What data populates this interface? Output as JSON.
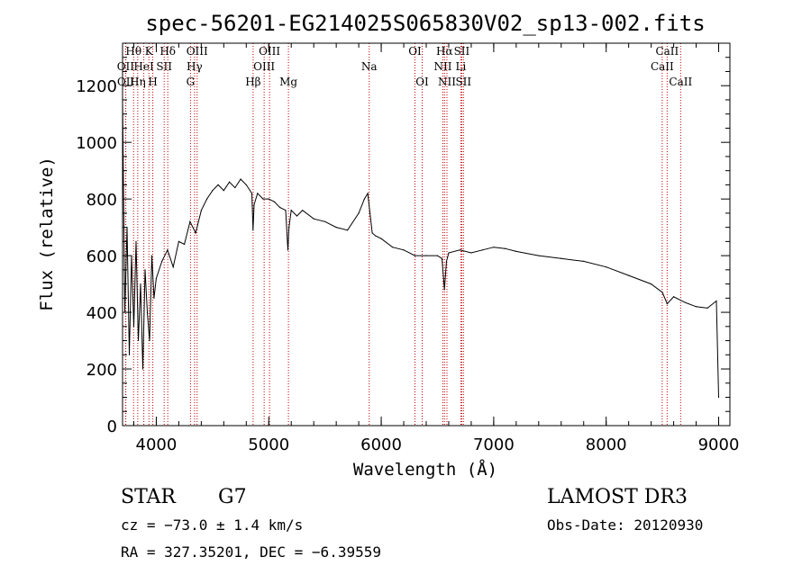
{
  "chart_data": {
    "type": "line",
    "title": "spec-56201-EG214025S065830V02_sp13-002.fits",
    "xlabel": "Wavelength (Å)",
    "ylabel": "Flux (relative)",
    "xlim": [
      3700,
      9100
    ],
    "ylim": [
      0,
      1350
    ],
    "x_ticks": [
      4000,
      5000,
      6000,
      7000,
      8000,
      9000
    ],
    "y_ticks": [
      0,
      200,
      400,
      600,
      800,
      1000,
      1200
    ],
    "series": [
      {
        "name": "spectrum",
        "x": [
          3700,
          3720,
          3740,
          3760,
          3780,
          3800,
          3820,
          3840,
          3860,
          3880,
          3900,
          3920,
          3940,
          3960,
          3980,
          4000,
          4050,
          4100,
          4150,
          4200,
          4250,
          4300,
          4350,
          4400,
          4450,
          4500,
          4550,
          4600,
          4650,
          4700,
          4750,
          4800,
          4850,
          4860,
          4870,
          4900,
          4950,
          5000,
          5050,
          5100,
          5150,
          5170,
          5180,
          5200,
          5250,
          5300,
          5400,
          5500,
          5600,
          5700,
          5800,
          5850,
          5880,
          5900,
          5920,
          5950,
          6000,
          6100,
          6200,
          6300,
          6400,
          6500,
          6540,
          6562,
          6580,
          6600,
          6700,
          6800,
          6900,
          7000,
          7100,
          7200,
          7400,
          7600,
          7800,
          8000,
          8200,
          8400,
          8500,
          8542,
          8600,
          8700,
          8800,
          8900,
          8980,
          9000
        ],
        "y": [
          1150,
          400,
          700,
          250,
          600,
          350,
          650,
          300,
          500,
          200,
          550,
          400,
          300,
          600,
          450,
          520,
          580,
          620,
          560,
          650,
          640,
          720,
          680,
          760,
          800,
          830,
          850,
          830,
          860,
          840,
          870,
          850,
          820,
          690,
          780,
          820,
          800,
          800,
          790,
          770,
          760,
          620,
          700,
          760,
          740,
          760,
          730,
          720,
          700,
          690,
          750,
          800,
          820,
          750,
          680,
          670,
          660,
          630,
          620,
          600,
          600,
          600,
          590,
          480,
          580,
          610,
          620,
          610,
          620,
          630,
          625,
          615,
          600,
          590,
          580,
          560,
          530,
          500,
          470,
          430,
          455,
          435,
          420,
          415,
          440,
          100
        ]
      }
    ],
    "spectral_lines": [
      {
        "label": "Hθ",
        "wavelength": 3798,
        "row": 1
      },
      {
        "label": "OII",
        "wavelength": 3727,
        "row": 2
      },
      {
        "label": "OII",
        "wavelength": 3729,
        "row": 3
      },
      {
        "label": "Hη",
        "wavelength": 3835,
        "row": 3
      },
      {
        "label": "K",
        "wavelength": 3934,
        "row": 1
      },
      {
        "label": "HeI",
        "wavelength": 3889,
        "row": 2
      },
      {
        "label": "H",
        "wavelength": 3969,
        "row": 3
      },
      {
        "label": "SII",
        "wavelength": 4070,
        "row": 2
      },
      {
        "label": "Hδ",
        "wavelength": 4102,
        "row": 1
      },
      {
        "label": "OIII",
        "wavelength": 4363,
        "row": 1
      },
      {
        "label": "Hγ",
        "wavelength": 4340,
        "row": 2
      },
      {
        "label": "G",
        "wavelength": 4304,
        "row": 3
      },
      {
        "label": "Hβ",
        "wavelength": 4861,
        "row": 3
      },
      {
        "label": "OIII",
        "wavelength": 5007,
        "row": 1
      },
      {
        "label": "OIII",
        "wavelength": 4959,
        "row": 2
      },
      {
        "label": "Mg",
        "wavelength": 5175,
        "row": 3
      },
      {
        "label": "Na",
        "wavelength": 5893,
        "row": 2
      },
      {
        "label": "OI",
        "wavelength": 6300,
        "row": 1
      },
      {
        "label": "OI",
        "wavelength": 6364,
        "row": 3
      },
      {
        "label": "Hα",
        "wavelength": 6563,
        "row": 1
      },
      {
        "label": "NII",
        "wavelength": 6548,
        "row": 2
      },
      {
        "label": "NII",
        "wavelength": 6584,
        "row": 3
      },
      {
        "label": "SII",
        "wavelength": 6716,
        "row": 1
      },
      {
        "label": "Li",
        "wavelength": 6708,
        "row": 2
      },
      {
        "label": "SII",
        "wavelength": 6731,
        "row": 3
      },
      {
        "label": "CaII",
        "wavelength": 8542,
        "row": 1
      },
      {
        "label": "CaII",
        "wavelength": 8498,
        "row": 2
      },
      {
        "label": "CaII",
        "wavelength": 8662,
        "row": 3
      }
    ]
  },
  "info": {
    "object_class": "STAR",
    "subclass": "G7",
    "survey": "LAMOST DR3",
    "redshift_text": "cz = −73.0 ± 1.4 km/s",
    "obs_date_text": "Obs-Date: 20120930",
    "coords_text": "RA = 327.35201, DEC =  −6.39559"
  }
}
